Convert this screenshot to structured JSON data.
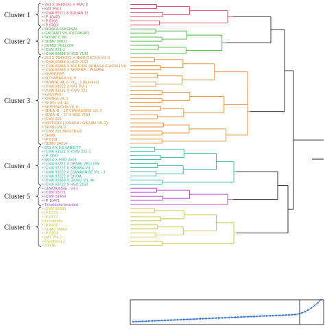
{
  "clusters": [
    {
      "id": 1,
      "label": "Cluster 1",
      "color": "#e0405a",
      "leaves": [
        "253 X 254/KOG X PMV 3",
        "KAT PM 1",
        "ICMA 00111 X SUUAN 11",
        "IP 10470",
        "IP 8766",
        "IP 6783"
      ]
    },
    {
      "id": 2,
      "label": "Cluster 2",
      "color": "#3fb53f",
      "leaves": [
        "KIRAKA ORIGINAL",
        "GACAATI VIL 4 (ICRISAT)",
        "SOSAT C 88",
        "SDMV 90031",
        "DEMBI YELLOW",
        "ICMV 221-1",
        "ICMA 00888 X HSD 7193"
      ]
    },
    {
      "id": 3,
      "label": "Cluster 3",
      "color": "#e8862a",
      "leaves": [
        "253 X 254/KOG X NKIRIGACHA VIL 8",
        "ICMA 00888 X HSD 2163",
        "ICMA 00888 X MIXTURE (KIRAKA /GACALI VIL",
        "ICMA 00888 X SERERE - IRAMBA",
        "KIMBEERE",
        "KITHARAKA VIL 9",
        "KIRAKA VIL 6- VIL - 1 (Itunduni)",
        "ICMA 93222 X KAT PM 1",
        "ICMA 93222 X ICMV 221",
        "KAGONGI",
        "KIRAKA VIL 1",
        "SIUKU VIL 4a",
        "NKIRIGACHA VIL 8",
        "SDEA 4L - 1X CIAKAUNGE VIL 3",
        "SDEA 4L - 17 X HSD 7193",
        "ICMV 221",
        "MIXTURE ( KIRAKA / GACALI VIL 2)",
        "SIUKU VIL 2",
        "ICMV 221 BRISTILED",
        "SH98L",
        "IP 6791",
        "SDMV 94014"
      ]
    },
    {
      "id": 4,
      "label": "Cluster 4",
      "color": "#2bb8a0",
      "leaves": [
        "863 A X FS VARIETY",
        "ICMA 93222 X ICMV 221-1",
        "IP 7390",
        "863 A X HSD 3508",
        "ICMA 93222 X DEMBI YELLOW",
        "ICMA 93222 X KIRAKA VIL 1",
        "ICMA 93222 X CIAKAUNGE VIL - 3",
        "ICMA 93222 X OKOA",
        "ICMA 00888 X SIUKU VIL 4b",
        "ICMA 93222 X HSD 2163"
      ]
    },
    {
      "id": 5,
      "label": "Cluster 5",
      "color": "#b43fd0",
      "leaves": [
        "CIAKAUNGE - Vil 3",
        "ICMV 93771",
        "ICMV 91450",
        "IP 10471",
        "Tsholotsho bearded"
      ]
    },
    {
      "id": 6,
      "label": "Cluster 6",
      "color": "#c8c23a",
      "leaves": [
        "ICMV 96603",
        "IP 8773",
        "IP 8777",
        "Tsholotsho",
        "IP 8767",
        "SDMV 89004",
        "IP 8764",
        "KAT PM 2",
        "Okashana 2",
        "OKOA"
      ]
    }
  ],
  "root_color": "#1a1a1a",
  "inset_color": "#2f6fd0"
}
